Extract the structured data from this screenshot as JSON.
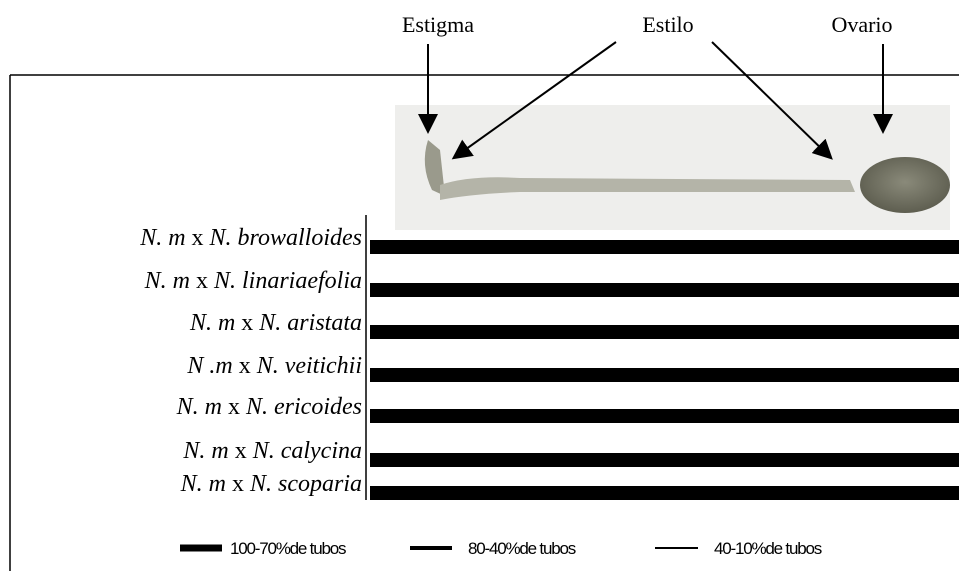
{
  "parts": [
    {
      "label": "Estigma"
    },
    {
      "label": "Estilo"
    },
    {
      "label": "Ovario"
    }
  ],
  "crosses": [
    {
      "female": "N. m",
      "sep": "x",
      "male": "N. browalloides"
    },
    {
      "female": "N. m",
      "sep": "x",
      "male": "N. linariaefolia"
    },
    {
      "female": "N. m",
      "sep": "x",
      "male": "N. aristata"
    },
    {
      "female": "N .m",
      "sep": "x",
      "male": "N. veitichii"
    },
    {
      "female": "N. m",
      "sep": "x",
      "male": "N. ericoides"
    },
    {
      "female": "N. m",
      "sep": "x",
      "male": "N. calycina"
    },
    {
      "female": "N. m",
      "sep": "x",
      "male": "N. scoparia"
    }
  ],
  "legend": [
    {
      "label": "100-70%de tubos"
    },
    {
      "label": "80-40%de tubos"
    },
    {
      "label": "40-10%de tubos"
    }
  ]
}
